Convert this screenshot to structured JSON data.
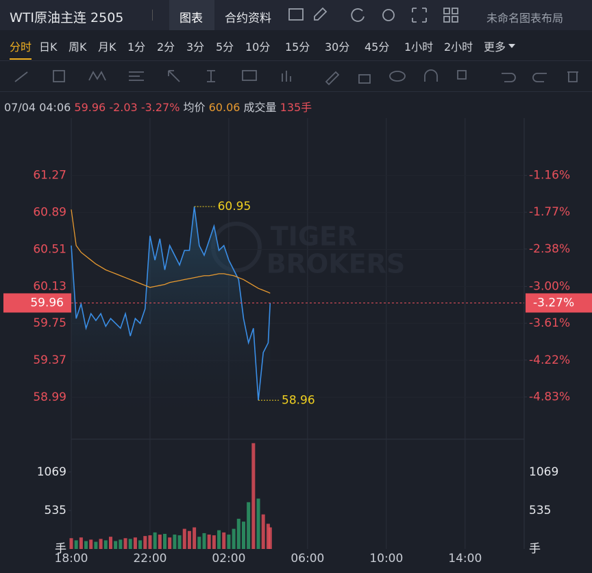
{
  "header": {
    "title": "WTI原油主连 2505",
    "tabs": [
      "图表",
      "合约资料"
    ],
    "layout_name": "未命名图表布局"
  },
  "timeframes": [
    "分时",
    "日K",
    "周K",
    "月K",
    "1分",
    "2分",
    "3分",
    "5分",
    "10分",
    "15分",
    "30分",
    "45分",
    "1小时",
    "2小时",
    "更多"
  ],
  "info": {
    "datetime": "07/04 04:06",
    "change": -2.03,
    "change_pct": "-3.27%",
    "avg_label": "均价",
    "avg": 60.06,
    "volume_label": "成交量",
    "volume": "135手"
  },
  "chart_data": {
    "type": "line",
    "watermark": [
      "TIGER",
      "BROKERS"
    ],
    "x": [
      "18:00",
      "18:15",
      "18:30",
      "18:45",
      "19:00",
      "19:15",
      "19:30",
      "19:45",
      "20:00",
      "20:15",
      "20:30",
      "20:45",
      "21:00",
      "21:15",
      "21:30",
      "21:45",
      "22:00",
      "22:15",
      "22:30",
      "22:45",
      "23:00",
      "23:15",
      "23:30",
      "23:45",
      "00:00",
      "00:15",
      "00:30",
      "00:45",
      "01:00",
      "01:15",
      "01:30",
      "01:45",
      "02:00",
      "02:15",
      "02:30",
      "02:45",
      "03:00",
      "03:15",
      "03:30",
      "03:45",
      "04:00",
      "04:06"
    ],
    "xlim": [
      "18:00",
      "17:00"
    ],
    "xticks": [
      "18:00",
      "22:00",
      "02:00",
      "06:00",
      "10:00",
      "14:00"
    ],
    "series": [
      {
        "name": "价格",
        "color": "#3a8ee6",
        "values": [
          60.55,
          59.8,
          59.95,
          59.7,
          59.85,
          59.78,
          59.85,
          59.72,
          59.8,
          59.75,
          59.7,
          59.85,
          59.62,
          59.8,
          59.75,
          59.9,
          60.65,
          60.4,
          60.62,
          60.3,
          60.55,
          60.45,
          60.35,
          60.5,
          60.5,
          60.95,
          60.55,
          60.45,
          60.6,
          60.75,
          60.5,
          60.55,
          60.4,
          60.3,
          60.2,
          59.8,
          59.55,
          59.7,
          58.96,
          59.45,
          59.55,
          59.96
        ]
      },
      {
        "name": "均价",
        "color": "#e89a30",
        "values": [
          60.92,
          60.55,
          60.48,
          60.44,
          60.4,
          60.36,
          60.33,
          60.3,
          60.28,
          60.26,
          60.24,
          60.22,
          60.2,
          60.18,
          60.16,
          60.14,
          60.12,
          60.13,
          60.14,
          60.15,
          60.17,
          60.18,
          60.19,
          60.2,
          60.21,
          60.22,
          60.23,
          60.24,
          60.24,
          60.25,
          60.26,
          60.26,
          60.25,
          60.24,
          60.22,
          60.2,
          60.17,
          60.14,
          60.11,
          60.09,
          60.07,
          60.06
        ]
      }
    ],
    "ylim": [
      58.56,
      61.86
    ],
    "yticks": [
      58.99,
      59.37,
      59.75,
      60.13,
      60.51,
      60.89,
      61.27
    ],
    "y2lim": [
      -5.53,
      -0.21
    ],
    "y2ticks": [
      {
        "value": -4.83,
        "label": "-4.83%"
      },
      {
        "value": -4.22,
        "label": "-4.22%"
      },
      {
        "value": -3.61,
        "label": "-3.61%"
      },
      {
        "value": -3.0,
        "label": "-3.00%"
      },
      {
        "value": -2.38,
        "label": "-2.38%"
      },
      {
        "value": -1.77,
        "label": "-1.77%"
      },
      {
        "value": -1.16,
        "label": "-1.16%"
      }
    ],
    "last_price": 59.96,
    "annotations": [
      {
        "x": "00:15",
        "value": 60.95
      },
      {
        "x": "03:30",
        "value": 58.96
      }
    ],
    "volume": {
      "values": [
        150,
        120,
        160,
        110,
        130,
        100,
        140,
        120,
        170,
        110,
        130,
        150,
        140,
        160,
        120,
        180,
        190,
        230,
        200,
        210,
        160,
        200,
        190,
        280,
        250,
        300,
        170,
        220,
        200,
        190,
        260,
        230,
        200,
        280,
        420,
        380,
        650,
        1470,
        700,
        480,
        350,
        300
      ],
      "ylim": [
        0,
        1525
      ],
      "yticks": [
        535,
        1069
      ],
      "unit": "手",
      "up_color": "#e8505b",
      "down_color": "#2ea06a"
    },
    "grid": true
  }
}
